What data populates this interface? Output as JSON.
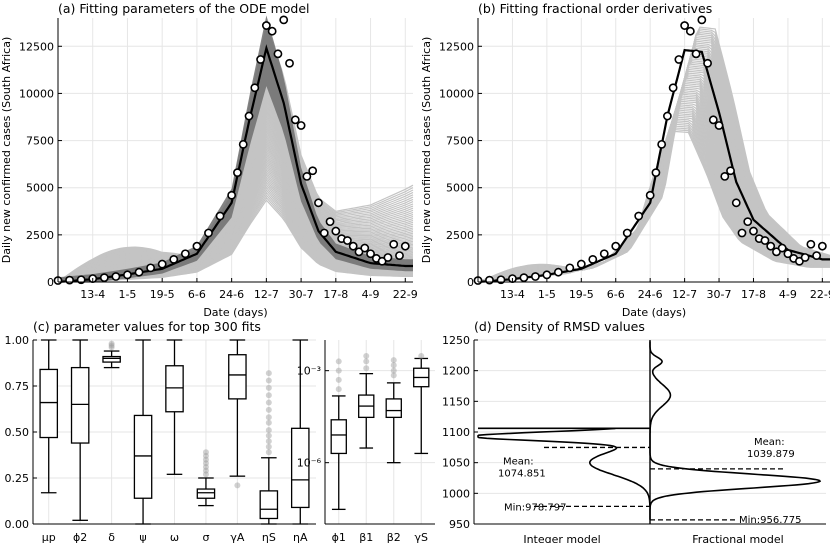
{
  "panels": {
    "a": {
      "title": "(a) Fitting parameters of the ODE model"
    },
    "b": {
      "title": "(b) Fitting fractional order derivatives"
    },
    "c": {
      "title": "(c) parameter values for top 300 fits"
    },
    "d": {
      "title": "(d)  Density of RMSD values"
    }
  },
  "chart_data": [
    {
      "type": "line",
      "panel": "a",
      "title": "(a) Fitting parameters of the ODE model",
      "xlabel": "Date (days)",
      "ylabel": "Daily new confirmed cases (South Africa)",
      "x_ticks": [
        "13-4",
        "1-5",
        "19-5",
        "6-6",
        "24-6",
        "12-7",
        "30-7",
        "17-8",
        "4-9",
        "22-9"
      ],
      "y_ticks": [
        0,
        2500,
        5000,
        7500,
        10000,
        12500
      ],
      "ylim": [
        0,
        14000
      ],
      "grid": true,
      "fit_curve": {
        "x": [
          "26-3",
          "13-4",
          "1-5",
          "19-5",
          "6-6",
          "24-6",
          "3-7",
          "12-7",
          "21-7",
          "30-7",
          "8-8",
          "17-8",
          "4-9",
          "22-9"
        ],
        "y": [
          0,
          150,
          400,
          700,
          1500,
          4200,
          8500,
          12400,
          9500,
          5200,
          2700,
          1600,
          1000,
          850
        ]
      },
      "observed": {
        "x": [
          "26-3",
          "1-4",
          "7-4",
          "13-4",
          "19-4",
          "25-4",
          "1-5",
          "7-5",
          "13-5",
          "19-5",
          "25-5",
          "31-5",
          "6-6",
          "12-6",
          "18-6",
          "24-6",
          "27-6",
          "30-6",
          "3-7",
          "6-7",
          "9-7",
          "12-7",
          "15-7",
          "18-7",
          "21-7",
          "24-7",
          "27-7",
          "30-7",
          "2-8",
          "5-8",
          "8-8",
          "11-8",
          "14-8",
          "17-8",
          "20-8",
          "23-8",
          "26-8",
          "29-8",
          "1-9",
          "4-9",
          "7-9",
          "10-9",
          "13-9",
          "16-9",
          "19-9",
          "22-9"
        ],
        "y": [
          80,
          100,
          120,
          180,
          230,
          290,
          380,
          520,
          750,
          950,
          1200,
          1500,
          1900,
          2600,
          3500,
          4600,
          5800,
          7300,
          8800,
          10300,
          11800,
          13600,
          13300,
          12100,
          13900,
          11600,
          8600,
          8300,
          5600,
          5900,
          4200,
          2600,
          3200,
          2700,
          2300,
          2200,
          1900,
          1600,
          1800,
          1500,
          1250,
          1100,
          1300,
          2000,
          1400,
          1900
        ]
      }
    },
    {
      "type": "line",
      "panel": "b",
      "title": "(b) Fitting fractional order derivatives",
      "xlabel": "Date (days)",
      "ylabel": "Daily new confirmed cases (South Africa)",
      "x_ticks": [
        "13-4",
        "1-5",
        "19-5",
        "6-6",
        "24-6",
        "12-7",
        "30-7",
        "17-8",
        "4-9",
        "22-9"
      ],
      "y_ticks": [
        0,
        2500,
        5000,
        7500,
        10000,
        12500
      ],
      "ylim": [
        0,
        14000
      ],
      "grid": true,
      "fit_curve": {
        "x": [
          "26-3",
          "13-4",
          "1-5",
          "19-5",
          "6-6",
          "24-6",
          "3-7",
          "12-7",
          "21-7",
          "30-7",
          "8-8",
          "17-8",
          "4-9",
          "22-9"
        ],
        "y": [
          0,
          150,
          380,
          700,
          1500,
          4200,
          8800,
          12300,
          12200,
          9000,
          5300,
          3300,
          1700,
          1200
        ]
      },
      "observed": {
        "x": [
          "26-3",
          "1-4",
          "7-4",
          "13-4",
          "19-4",
          "25-4",
          "1-5",
          "7-5",
          "13-5",
          "19-5",
          "25-5",
          "31-5",
          "6-6",
          "12-6",
          "18-6",
          "24-6",
          "27-6",
          "30-6",
          "3-7",
          "6-7",
          "9-7",
          "12-7",
          "15-7",
          "18-7",
          "21-7",
          "24-7",
          "27-7",
          "30-7",
          "2-8",
          "5-8",
          "8-8",
          "11-8",
          "14-8",
          "17-8",
          "20-8",
          "23-8",
          "26-8",
          "29-8",
          "1-9",
          "4-9",
          "7-9",
          "10-9",
          "13-9",
          "16-9",
          "19-9",
          "22-9"
        ],
        "y": [
          80,
          100,
          120,
          180,
          230,
          290,
          380,
          520,
          750,
          950,
          1200,
          1500,
          1900,
          2600,
          3500,
          4600,
          5800,
          7300,
          8800,
          10300,
          11800,
          13600,
          13300,
          12100,
          13900,
          11600,
          8600,
          8300,
          5600,
          5900,
          4200,
          2600,
          3200,
          2700,
          2300,
          2200,
          1900,
          1600,
          1800,
          1500,
          1250,
          1100,
          1300,
          2000,
          1400,
          1900
        ]
      }
    },
    {
      "type": "box",
      "panel": "c-left",
      "title": "(c) parameter values for top 300 fits",
      "y_ticks": [
        "0.00",
        "0.25",
        "0.50",
        "0.75",
        "1.00"
      ],
      "ylim": [
        0,
        1
      ],
      "grid": true,
      "boxes": [
        {
          "name": "μp",
          "whislo": 0.17,
          "q1": 0.47,
          "med": 0.66,
          "q3": 0.84,
          "whishi": 1.0,
          "fliers": []
        },
        {
          "name": "ϕ2",
          "whislo": 0.02,
          "q1": 0.44,
          "med": 0.65,
          "q3": 0.85,
          "whishi": 1.0,
          "fliers": []
        },
        {
          "name": "δ",
          "whislo": 0.85,
          "q1": 0.88,
          "med": 0.9,
          "q3": 0.91,
          "whishi": 0.94,
          "fliers": [
            0.96,
            0.97,
            0.98
          ]
        },
        {
          "name": "ψ",
          "whislo": 0.0,
          "q1": 0.14,
          "med": 0.37,
          "q3": 0.59,
          "whishi": 1.0,
          "fliers": []
        },
        {
          "name": "ω",
          "whislo": 0.27,
          "q1": 0.61,
          "med": 0.74,
          "q3": 0.86,
          "whishi": 1.0,
          "fliers": []
        },
        {
          "name": "σ",
          "whislo": 0.1,
          "q1": 0.14,
          "med": 0.17,
          "q3": 0.19,
          "whishi": 0.25,
          "fliers": [
            0.27,
            0.29,
            0.31,
            0.33,
            0.35,
            0.37,
            0.39
          ]
        },
        {
          "name": "γA",
          "whislo": 0.26,
          "q1": 0.68,
          "med": 0.81,
          "q3": 0.92,
          "whishi": 1.0,
          "fliers": [
            0.21
          ]
        },
        {
          "name": "ηS",
          "whislo": 0.0,
          "q1": 0.03,
          "med": 0.08,
          "q3": 0.18,
          "whishi": 0.36,
          "fliers": [
            0.39,
            0.42,
            0.45,
            0.48,
            0.51,
            0.55,
            0.58,
            0.62,
            0.66,
            0.7,
            0.74,
            0.78,
            0.82
          ]
        },
        {
          "name": "ηA",
          "whislo": 0.0,
          "q1": 0.09,
          "med": 0.24,
          "q3": 0.52,
          "whishi": 1.0,
          "fliers": []
        }
      ]
    },
    {
      "type": "box",
      "panel": "c-right",
      "yscale": "log",
      "y_ticks": [
        "10⁻⁶",
        "10⁻³"
      ],
      "ylim": [
        1e-08,
        0.01
      ],
      "grid": true,
      "boxes": [
        {
          "name": "ϕ1",
          "whislo": 3e-08,
          "q1": 2e-06,
          "med": 8e-06,
          "q3": 2.5e-05,
          "whishi": 0.00015,
          "fliers": [
            0.00025,
            0.0005,
            0.001,
            0.002
          ]
        },
        {
          "name": "β1",
          "whislo": 3e-06,
          "q1": 3e-05,
          "med": 7e-05,
          "q3": 0.00016,
          "whishi": 0.0008,
          "fliers": [
            0.0012,
            0.002,
            0.003
          ]
        },
        {
          "name": "β2",
          "whislo": 1e-06,
          "q1": 3e-05,
          "med": 5e-05,
          "q3": 0.00012,
          "whishi": 0.0004,
          "fliers": [
            0.0007,
            0.001,
            0.0015,
            0.0022
          ]
        },
        {
          "name": "γS",
          "whislo": 2e-06,
          "q1": 0.0003,
          "med": 0.0006,
          "q3": 0.0012,
          "whishi": 0.0025,
          "fliers": [
            0.003
          ]
        }
      ]
    },
    {
      "type": "violin",
      "panel": "d",
      "title": "(d)  Density of RMSD values",
      "y_ticks": [
        950,
        1000,
        1050,
        1100,
        1150,
        1200,
        1250
      ],
      "ylim": [
        950,
        1250
      ],
      "grid": true,
      "groups": [
        {
          "name": "Integer model",
          "mean_label": "Mean:",
          "mean_value": "1074.851",
          "min_label": "Min:978.797",
          "mean": 1074.851,
          "min": 978.797
        },
        {
          "name": "Fractional model",
          "mean_label": "Mean:",
          "mean_value": "1039.879",
          "min_label": "Min:956.775",
          "mean": 1039.879,
          "min": 956.775
        }
      ]
    }
  ]
}
